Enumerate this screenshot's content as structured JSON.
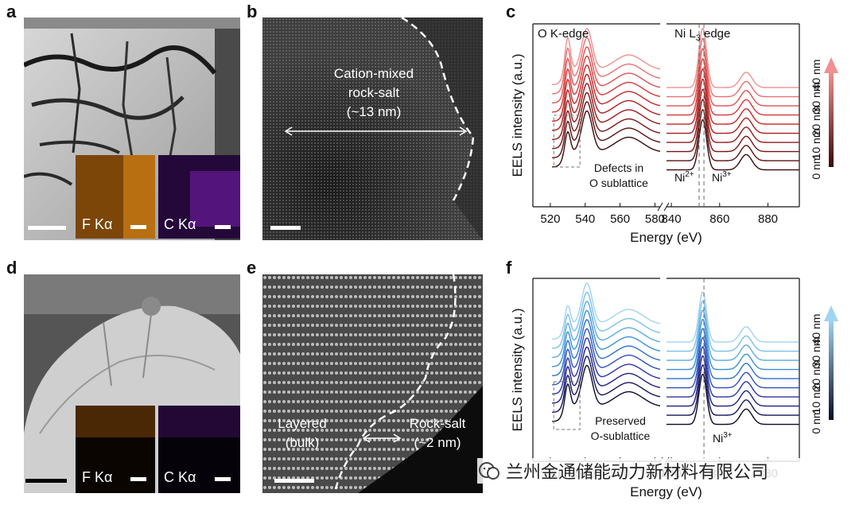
{
  "panels": {
    "a": {
      "label": "a",
      "inset1_label": "F Kα",
      "inset2_label": "C Kα"
    },
    "b": {
      "label": "b",
      "annotation_line1": "Cation-mixed",
      "annotation_line2": "rock-salt",
      "annotation_line3": "(~13 nm)"
    },
    "c": {
      "label": "c",
      "left_title": "O K-edge",
      "right_title_main": "Ni L",
      "right_title_sub": "3",
      "right_title_rest": " edge",
      "defects_line1": "Defects in",
      "defects_line2": "O sublattice",
      "ni2": "Ni",
      "ni2_sup": "2+",
      "ni3": "Ni",
      "ni3_sup": "3+",
      "depth_labels": [
        "40 nm",
        "30 nm",
        "20 nm",
        "10 nm",
        "0 nm"
      ]
    },
    "d": {
      "label": "d",
      "inset1_label": "F Kα",
      "inset2_label": "C Kα"
    },
    "e": {
      "label": "e",
      "layered_line1": "Layered",
      "layered_line2": "(bulk)",
      "rocksalt_line1": "Rock-salt",
      "rocksalt_line2": "(~2 nm)"
    },
    "f": {
      "label": "f",
      "preserved_line1": "Preserved",
      "preserved_line2": "O-sublattice",
      "ni3": "Ni",
      "ni3_sup": "3+",
      "depth_labels": [
        "40 nm",
        "30 nm",
        "20 nm",
        "10 nm",
        "0 nm"
      ]
    }
  },
  "axes": {
    "ylabel": "EELS intensity (a.u.)",
    "xlabel": "Energy (eV)",
    "ticks_left": [
      "520",
      "540",
      "560",
      "580"
    ],
    "ticks_right": [
      "840",
      "860",
      "880"
    ]
  },
  "watermark": {
    "text": "兰州金通储能动力新材料有限公司",
    "icon": "wechat-icon"
  },
  "colors": {
    "red_series": [
      "#3a0a0a",
      "#5a1010",
      "#7a1414",
      "#961818",
      "#b01c1c",
      "#c82424",
      "#d83838",
      "#e05050",
      "#e87070",
      "#f09090"
    ],
    "blue_series": [
      "#0a0a2a",
      "#14145a",
      "#1e2080",
      "#2a34a8",
      "#2c50c0",
      "#2a70cc",
      "#3a90d8",
      "#5aaae0",
      "#7cc0e8",
      "#a0d4f0"
    ]
  },
  "chart_data": [
    {
      "type": "line",
      "panel": "c",
      "title": "O K-edge / Ni L3 edge",
      "xlabel": "Energy (eV)",
      "ylabel": "EELS intensity (a.u.)",
      "x_ranges": [
        [
          510,
          583
        ],
        [
          838,
          893
        ]
      ],
      "series_count": 10,
      "depth_range_nm": [
        0,
        40
      ],
      "feature_energies_eV": {
        "O_prepeak": 530,
        "O_main": 541,
        "O_broad": 565,
        "Ni_L3": 853,
        "Ni_L2": 871
      },
      "reference_lines_eV": [
        851.5,
        853.5
      ],
      "defects_box_eV": [
        522,
        537
      ]
    },
    {
      "type": "line",
      "panel": "f",
      "title": "O K-edge / Ni L3 edge",
      "xlabel": "Energy (eV)",
      "ylabel": "EELS intensity (a.u.)",
      "x_ranges": [
        [
          510,
          583
        ],
        [
          838,
          893
        ]
      ],
      "series_count": 10,
      "depth_range_nm": [
        0,
        40
      ],
      "feature_energies_eV": {
        "O_prepeak": 530,
        "O_main": 541,
        "O_broad": 565,
        "Ni_L3": 853,
        "Ni_L2": 871
      },
      "reference_lines_eV": [
        853.5
      ],
      "defects_box_eV": [
        522,
        537
      ]
    }
  ]
}
